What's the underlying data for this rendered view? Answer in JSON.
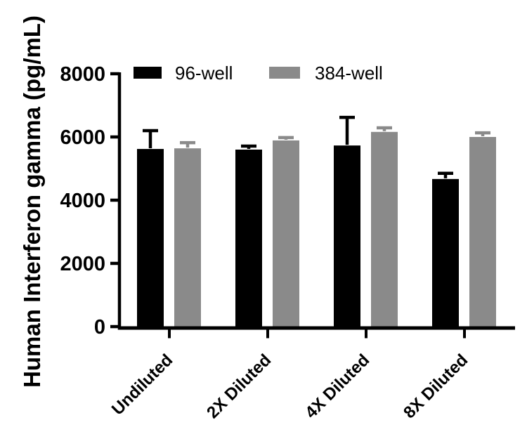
{
  "figure": {
    "background_color": "#ffffff",
    "axis_color": "#000000"
  },
  "chart_data": {
    "type": "bar",
    "title": "",
    "xlabel": "",
    "ylabel": "Human Interferon gamma (pg/mL)",
    "categories": [
      "Undiluted",
      "2X Diluted",
      "4X Diluted",
      "8X Diluted"
    ],
    "series": [
      {
        "name": "96-well",
        "color": "#000000",
        "values": [
          5620,
          5600,
          5730,
          4670
        ],
        "errors_plus": [
          580,
          110,
          890,
          180
        ]
      },
      {
        "name": "384-well",
        "color": "#8a8a8a",
        "values": [
          5640,
          5890,
          6160,
          6000
        ],
        "errors_plus": [
          180,
          90,
          130,
          130
        ]
      }
    ],
    "ylim": [
      0,
      8000
    ],
    "yticks": [
      0,
      2000,
      4000,
      6000,
      8000
    ],
    "ytick_labels": [
      "0",
      "2000",
      "4000",
      "6000",
      "8000"
    ],
    "grid": false,
    "error_bars": "upper-only",
    "legend_position": "top-inside"
  }
}
